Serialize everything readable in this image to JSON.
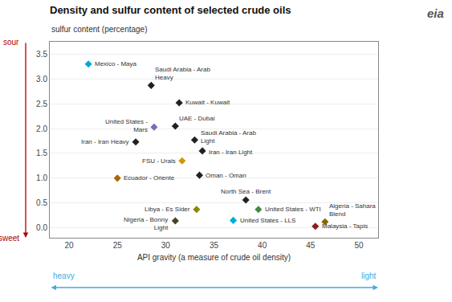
{
  "chart_data": {
    "type": "scatter",
    "title": "Density and sulfur content of selected crude oils",
    "ylabel": "sulfur content (percentage)",
    "xlabel": "API gravity (a measure of crude oil density)",
    "x": [
      22.0,
      28.5,
      31.4,
      28.8,
      31.0,
      26.9,
      33.0,
      33.8,
      31.7,
      33.5,
      25.0,
      38.3,
      33.2,
      39.6,
      31.0,
      37.0,
      46.5,
      45.5
    ],
    "values": [
      3.3,
      2.87,
      2.52,
      2.03,
      2.05,
      1.73,
      1.77,
      1.55,
      1.35,
      1.06,
      1.0,
      0.56,
      0.37,
      0.37,
      0.14,
      0.15,
      0.12,
      0.03
    ],
    "labels": [
      "Mexico - Maya",
      "Saudi Arabia - Arab\nHeavy",
      "Kuwait - Kuwait",
      "United States -\nMars",
      "UAE - Dubai",
      "Iran - Iran Heavy",
      "Saudi Arabia - Arab\nLight",
      "Iran - Iran Light",
      "FSU - Urals",
      "Oman - Oman",
      "Ecuador - Oriente",
      "North Sea - Brent",
      "Libya - Es Sider",
      "United States - WTI",
      "Nigeria - Bonny\nLight",
      "United States - LLS",
      "Algeria - Sahara\nBlend",
      "Malaysia - Tapis"
    ],
    "colors": [
      "#00aadd",
      "#222222",
      "#222222",
      "#7070bb",
      "#222222",
      "#222222",
      "#222222",
      "#222222",
      "#cc9900",
      "#222222",
      "#aa6600",
      "#222222",
      "#888800",
      "#448844",
      "#444422",
      "#00aadd",
      "#886600",
      "#882222"
    ],
    "marker": "diamond",
    "xlim": [
      18,
      52
    ],
    "ylim": [
      -0.2,
      3.75
    ],
    "xticks": [
      20,
      25,
      30,
      35,
      40,
      45,
      50
    ],
    "yticks": [
      {
        "value": 0,
        "label": "0.0"
      },
      0.5,
      {
        "value": 1,
        "label": "1.0"
      },
      1.5,
      {
        "value": 2,
        "label": "2.0"
      },
      2.5,
      {
        "value": 3,
        "label": "3.0"
      },
      3.5
    ],
    "grid": "y",
    "annotations": [
      {
        "text": "sour",
        "color": "#aa0000"
      },
      {
        "text": "sweet",
        "color": "#aa0000"
      },
      {
        "text": "heavy",
        "color": "#44aadd"
      },
      {
        "text": "light",
        "color": "#44aadd"
      },
      {
        "text": "eia",
        "color": "#555555"
      }
    ]
  }
}
